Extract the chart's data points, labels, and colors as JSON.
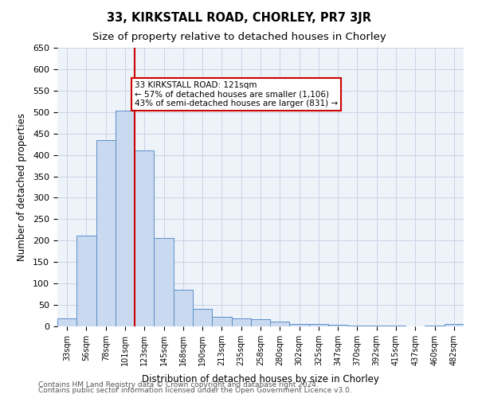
{
  "title": "33, KIRKSTALL ROAD, CHORLEY, PR7 3JR",
  "subtitle": "Size of property relative to detached houses in Chorley",
  "xlabel": "Distribution of detached houses by size in Chorley",
  "ylabel": "Number of detached properties",
  "footnote1": "Contains HM Land Registry data © Crown copyright and database right 2024.",
  "footnote2": "Contains public sector information licensed under the Open Government Licence v3.0.",
  "categories": [
    "33sqm",
    "56sqm",
    "78sqm",
    "101sqm",
    "123sqm",
    "145sqm",
    "168sqm",
    "190sqm",
    "213sqm",
    "235sqm",
    "258sqm",
    "280sqm",
    "302sqm",
    "325sqm",
    "347sqm",
    "370sqm",
    "392sqm",
    "415sqm",
    "437sqm",
    "460sqm",
    "482sqm"
  ],
  "values": [
    18,
    212,
    435,
    503,
    410,
    207,
    85,
    40,
    22,
    19,
    16,
    11,
    6,
    5,
    3,
    2,
    1,
    1,
    0,
    1,
    5
  ],
  "bar_color": "#c9d9f0",
  "bar_edge_color": "#5b8fc9",
  "vline_x": 4,
  "vline_color": "#cc0000",
  "annotation_title": "33 KIRKSTALL ROAD: 121sqm",
  "annotation_line1": "← 57% of detached houses are smaller (1,106)",
  "annotation_line2": "43% of semi-detached houses are larger (831) →",
  "annotation_box_color": "#cc0000",
  "ylim": [
    0,
    650
  ],
  "yticks": [
    0,
    50,
    100,
    150,
    200,
    250,
    300,
    350,
    400,
    450,
    500,
    550,
    600,
    650
  ],
  "grid_color": "#c8d4e8",
  "background_color": "#eef2f9"
}
